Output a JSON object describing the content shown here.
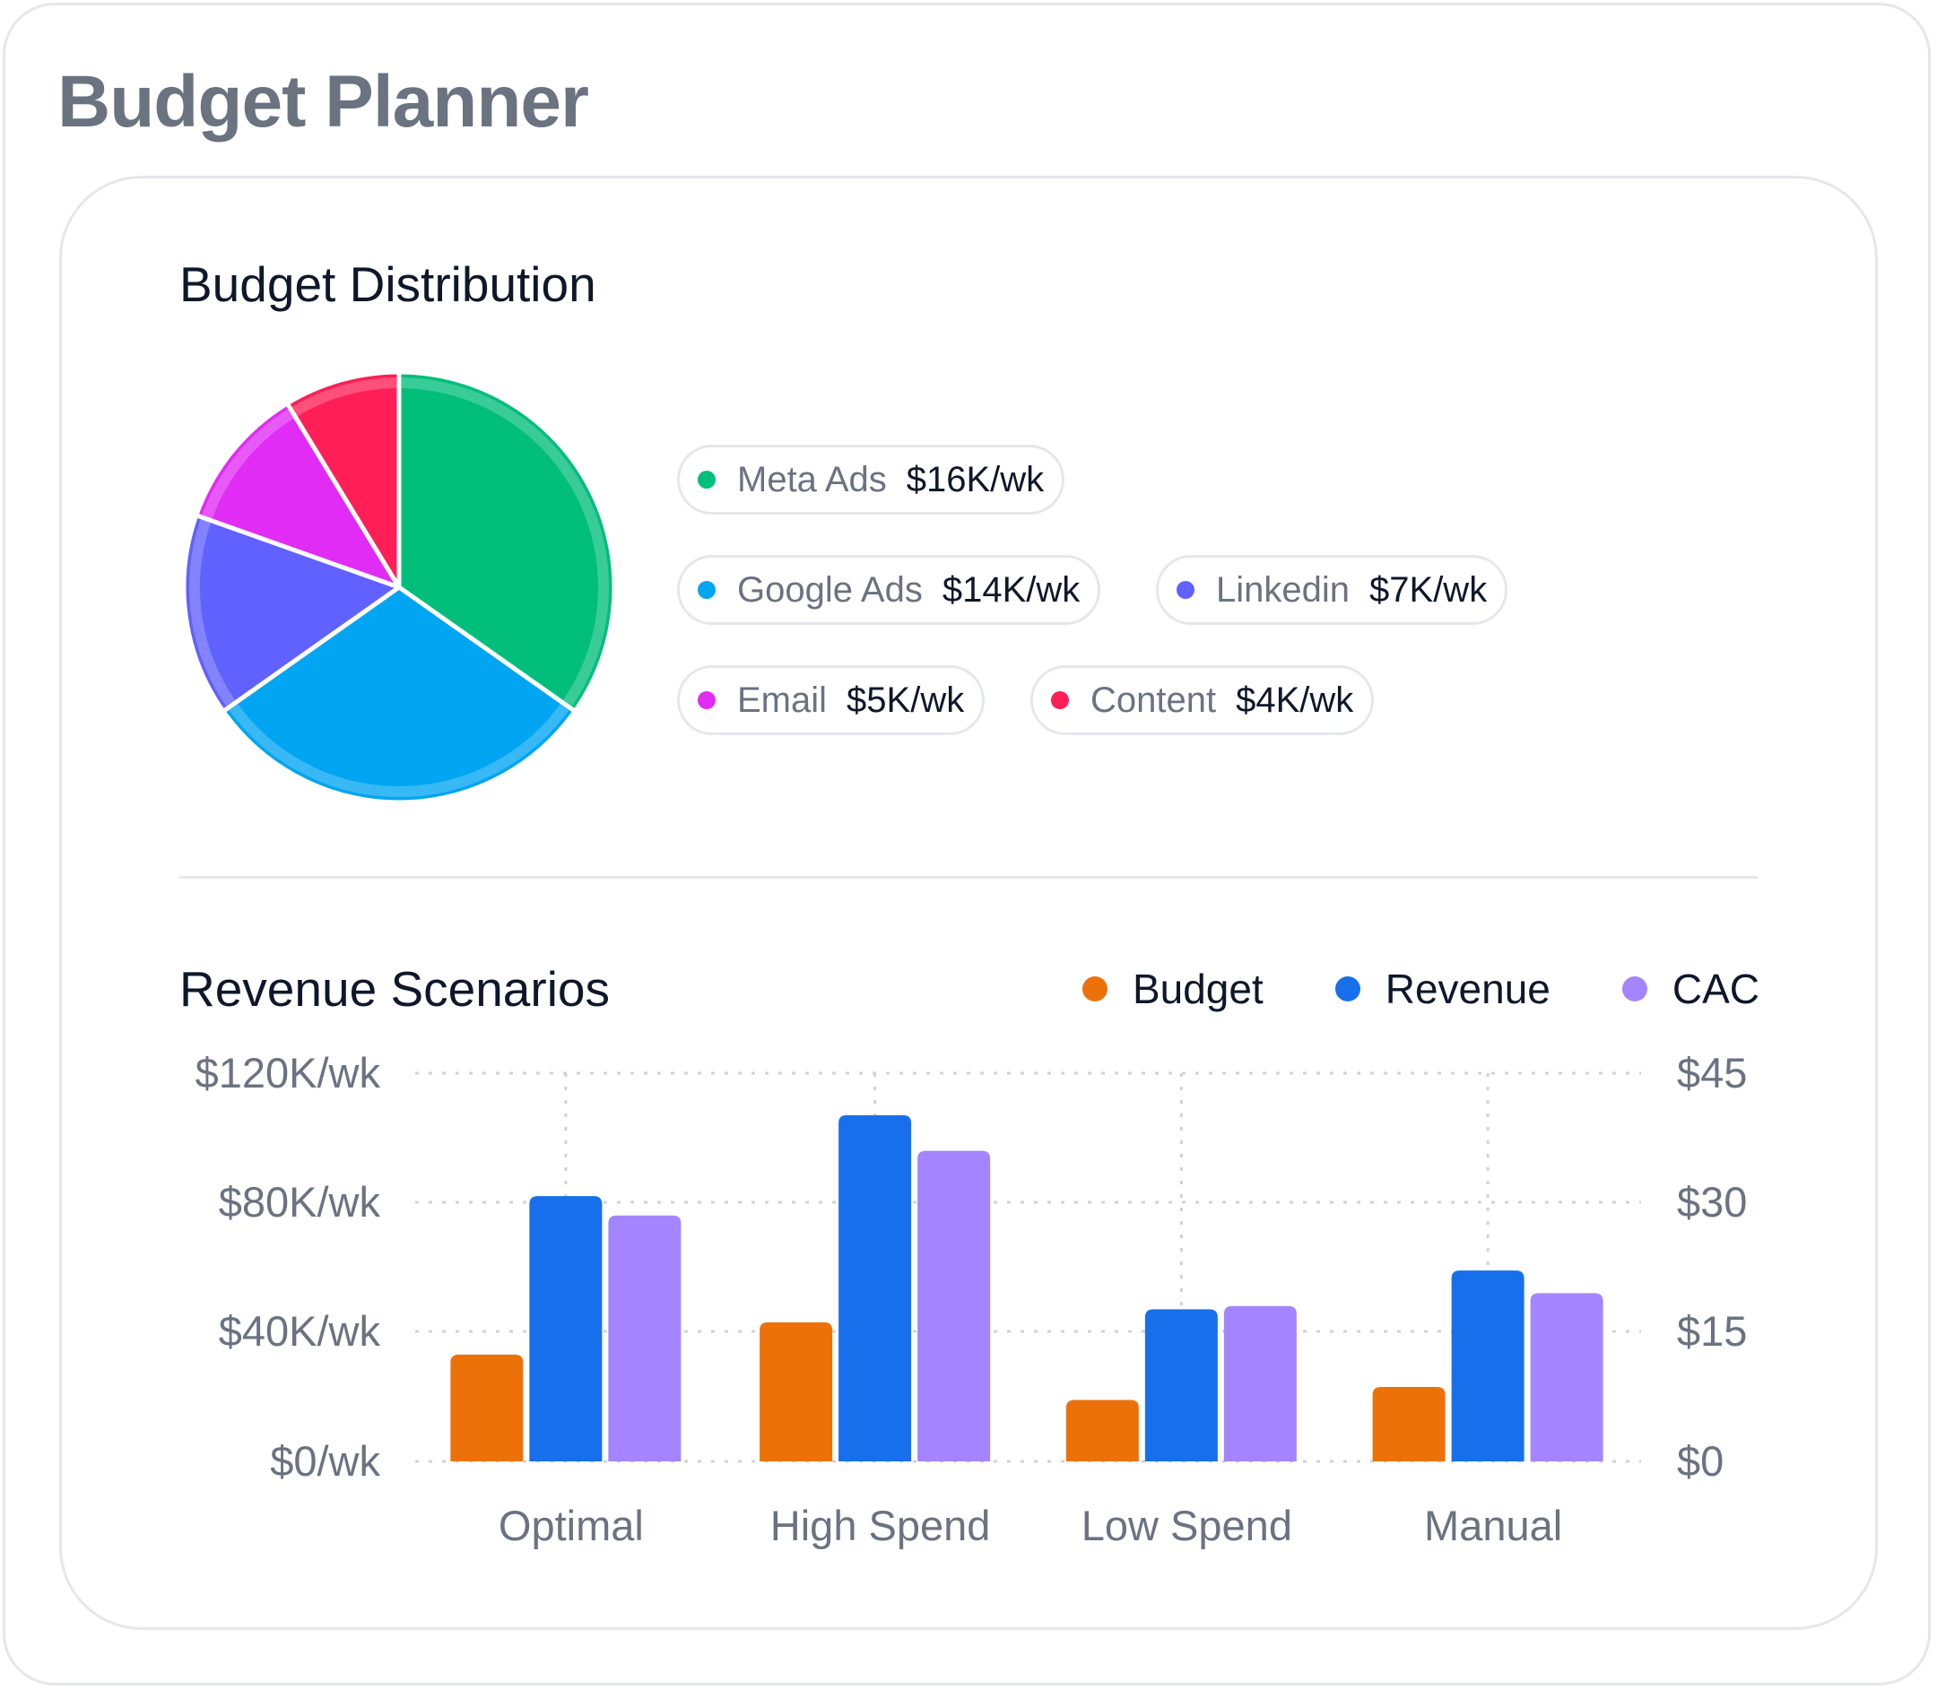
{
  "app": {
    "title": "Budget Planner"
  },
  "budget_distribution": {
    "title": "Budget Distribution",
    "items": [
      {
        "name": "Meta Ads",
        "value_label": "$16K/wk",
        "color": "#02be7b"
      },
      {
        "name": "Google Ads",
        "value_label": "$14K/wk",
        "color": "#01a5f2"
      },
      {
        "name": "Linkedin",
        "value_label": "$7K/wk",
        "color": "#6161ff"
      },
      {
        "name": "Email",
        "value_label": "$5K/wk",
        "color": "#e02cf5"
      },
      {
        "name": "Content",
        "value_label": "$4K/wk",
        "color": "#ff1e56"
      }
    ]
  },
  "revenue_scenarios": {
    "title": "Revenue Scenarios",
    "legend": [
      {
        "label": "Budget",
        "color": "#ed7109"
      },
      {
        "label": "Revenue",
        "color": "#186fec"
      },
      {
        "label": "CAC",
        "color": "#a584ff"
      }
    ]
  },
  "chart_data": [
    {
      "type": "pie",
      "title": "Budget Distribution",
      "categories": [
        "Meta Ads",
        "Google Ads",
        "Linkedin",
        "Email",
        "Content"
      ],
      "values": [
        16,
        14,
        7,
        5,
        4
      ],
      "unit": "$K/wk"
    },
    {
      "type": "bar",
      "title": "Revenue Scenarios",
      "categories": [
        "Optimal",
        "High Spend",
        "Low Spend",
        "Manual"
      ],
      "series": [
        {
          "name": "Budget",
          "axis": "left",
          "values": [
            33,
            43,
            19,
            23
          ]
        },
        {
          "name": "Revenue",
          "axis": "left",
          "values": [
            82,
            107,
            47,
            59
          ]
        },
        {
          "name": "CAC",
          "axis": "right",
          "values": [
            28.5,
            36,
            18,
            19.5
          ]
        }
      ],
      "y_left": {
        "ticks": [
          "$0/wk",
          "$40K/wk",
          "$80K/wk",
          "$120K/wk"
        ],
        "ylim": [
          0,
          120
        ]
      },
      "y_right": {
        "ticks": [
          "$0",
          "$15",
          "$30",
          "$45"
        ],
        "ylim": [
          0,
          45
        ]
      },
      "grid": true,
      "legend": "top-right"
    }
  ]
}
